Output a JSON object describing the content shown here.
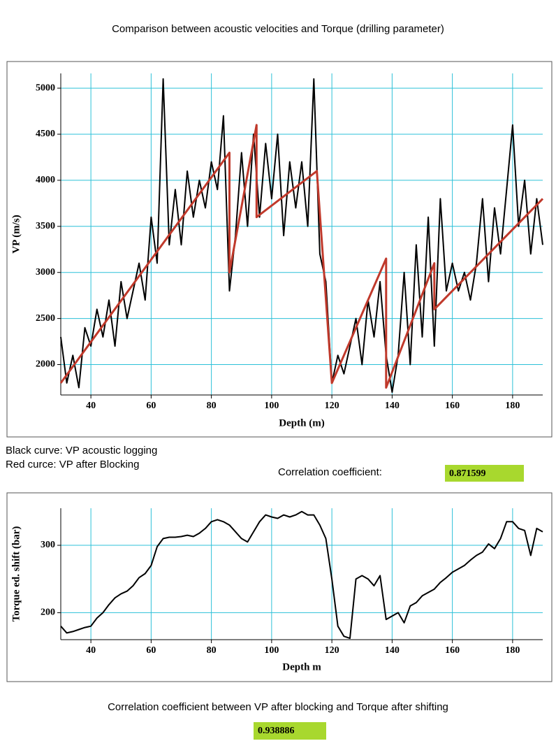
{
  "header": {
    "title": "Comparison between acoustic velocities and Torque (drilling parameter)"
  },
  "notes": {
    "black": "Black curve: VP acoustic logging",
    "red": "Red curce: VP after Blocking",
    "corr_label": "Correlation coefficient:",
    "corr_value": 0.871599,
    "corr2_label": "Correlation coefficient between VP after blocking and Torque after shifting",
    "corr2_value": 0.938886
  },
  "chart_data": [
    {
      "type": "line",
      "xlabel": "Depth (m)",
      "ylabel": "VP (m/s)",
      "grid": true,
      "grid_color": "#2cc0d8",
      "xlim": [
        30,
        190
      ],
      "ylim": [
        1670,
        5160
      ],
      "xticks": [
        40,
        60,
        80,
        100,
        120,
        140,
        160,
        180
      ],
      "yticks": [
        2000,
        2500,
        3000,
        3500,
        4000,
        4500,
        5000
      ],
      "series": [
        {
          "name": "VP acoustic logging",
          "color": "#000000",
          "x": [
            30,
            32,
            34,
            36,
            38,
            40,
            42,
            44,
            46,
            48,
            50,
            52,
            54,
            56,
            58,
            60,
            62,
            64,
            66,
            68,
            70,
            72,
            74,
            76,
            78,
            80,
            82,
            84,
            86,
            88,
            90,
            92,
            94,
            96,
            98,
            100,
            102,
            104,
            106,
            108,
            110,
            112,
            114,
            116,
            118,
            120,
            122,
            124,
            126,
            128,
            130,
            132,
            134,
            136,
            138,
            140,
            142,
            144,
            146,
            148,
            150,
            152,
            154,
            156,
            158,
            160,
            162,
            164,
            166,
            168,
            170,
            172,
            174,
            176,
            178,
            180,
            182,
            184,
            186,
            188,
            190
          ],
          "values": [
            2300,
            1800,
            2100,
            1750,
            2400,
            2200,
            2600,
            2300,
            2700,
            2200,
            2900,
            2500,
            2800,
            3100,
            2700,
            3600,
            3100,
            5100,
            3300,
            3900,
            3300,
            4100,
            3600,
            4000,
            3700,
            4200,
            3900,
            4700,
            2800,
            3400,
            4300,
            3500,
            4500,
            3600,
            4400,
            3800,
            4500,
            3400,
            4200,
            3700,
            4200,
            3500,
            5100,
            3200,
            2900,
            1800,
            2100,
            1900,
            2200,
            2500,
            2000,
            2700,
            2300,
            2900,
            2100,
            1700,
            2100,
            3000,
            2000,
            3300,
            2300,
            3600,
            2200,
            3800,
            2800,
            3100,
            2800,
            3000,
            2700,
            3100,
            3800,
            2900,
            3700,
            3200,
            3900,
            4600,
            3500,
            4000,
            3200,
            3800,
            3300
          ]
        },
        {
          "name": "VP after Blocking",
          "color": "#c0392b",
          "x": [
            30,
            86,
            86,
            95,
            95,
            115,
            120,
            138,
            138,
            154,
            154,
            190
          ],
          "values": [
            1800,
            4300,
            3000,
            4600,
            3600,
            4100,
            1800,
            3150,
            1750,
            3100,
            2600,
            3800
          ]
        }
      ]
    },
    {
      "type": "line",
      "xlabel": "Depth m",
      "ylabel": "Torque ed. shift (bar)",
      "grid": true,
      "grid_color": "#2cc0d8",
      "xlim": [
        30,
        190
      ],
      "ylim": [
        160,
        355
      ],
      "xticks": [
        40,
        60,
        80,
        100,
        120,
        140,
        160,
        180
      ],
      "yticks": [
        200,
        300
      ],
      "series": [
        {
          "name": "Torque ed. shift",
          "color": "#000000",
          "x": [
            30,
            32,
            34,
            36,
            38,
            40,
            42,
            44,
            46,
            48,
            50,
            52,
            54,
            56,
            58,
            60,
            62,
            64,
            66,
            68,
            70,
            72,
            74,
            76,
            78,
            80,
            82,
            84,
            86,
            88,
            90,
            92,
            94,
            96,
            98,
            100,
            102,
            104,
            106,
            108,
            110,
            112,
            114,
            116,
            118,
            120,
            122,
            124,
            126,
            128,
            130,
            132,
            134,
            136,
            138,
            140,
            142,
            144,
            146,
            148,
            150,
            152,
            154,
            156,
            158,
            160,
            162,
            164,
            166,
            168,
            170,
            172,
            174,
            176,
            178,
            180,
            182,
            184,
            186,
            188,
            190
          ],
          "values": [
            180,
            170,
            172,
            175,
            178,
            180,
            192,
            200,
            212,
            222,
            228,
            232,
            240,
            252,
            258,
            270,
            298,
            310,
            312,
            312,
            313,
            315,
            313,
            318,
            325,
            335,
            338,
            335,
            330,
            320,
            310,
            305,
            320,
            335,
            345,
            342,
            340,
            345,
            342,
            345,
            350,
            345,
            345,
            330,
            310,
            250,
            180,
            165,
            162,
            250,
            255,
            250,
            240,
            255,
            190,
            195,
            200,
            185,
            210,
            215,
            225,
            230,
            235,
            245,
            252,
            260,
            265,
            270,
            278,
            285,
            290,
            302,
            295,
            310,
            335,
            335,
            325,
            322,
            285,
            325,
            320
          ]
        }
      ]
    }
  ]
}
